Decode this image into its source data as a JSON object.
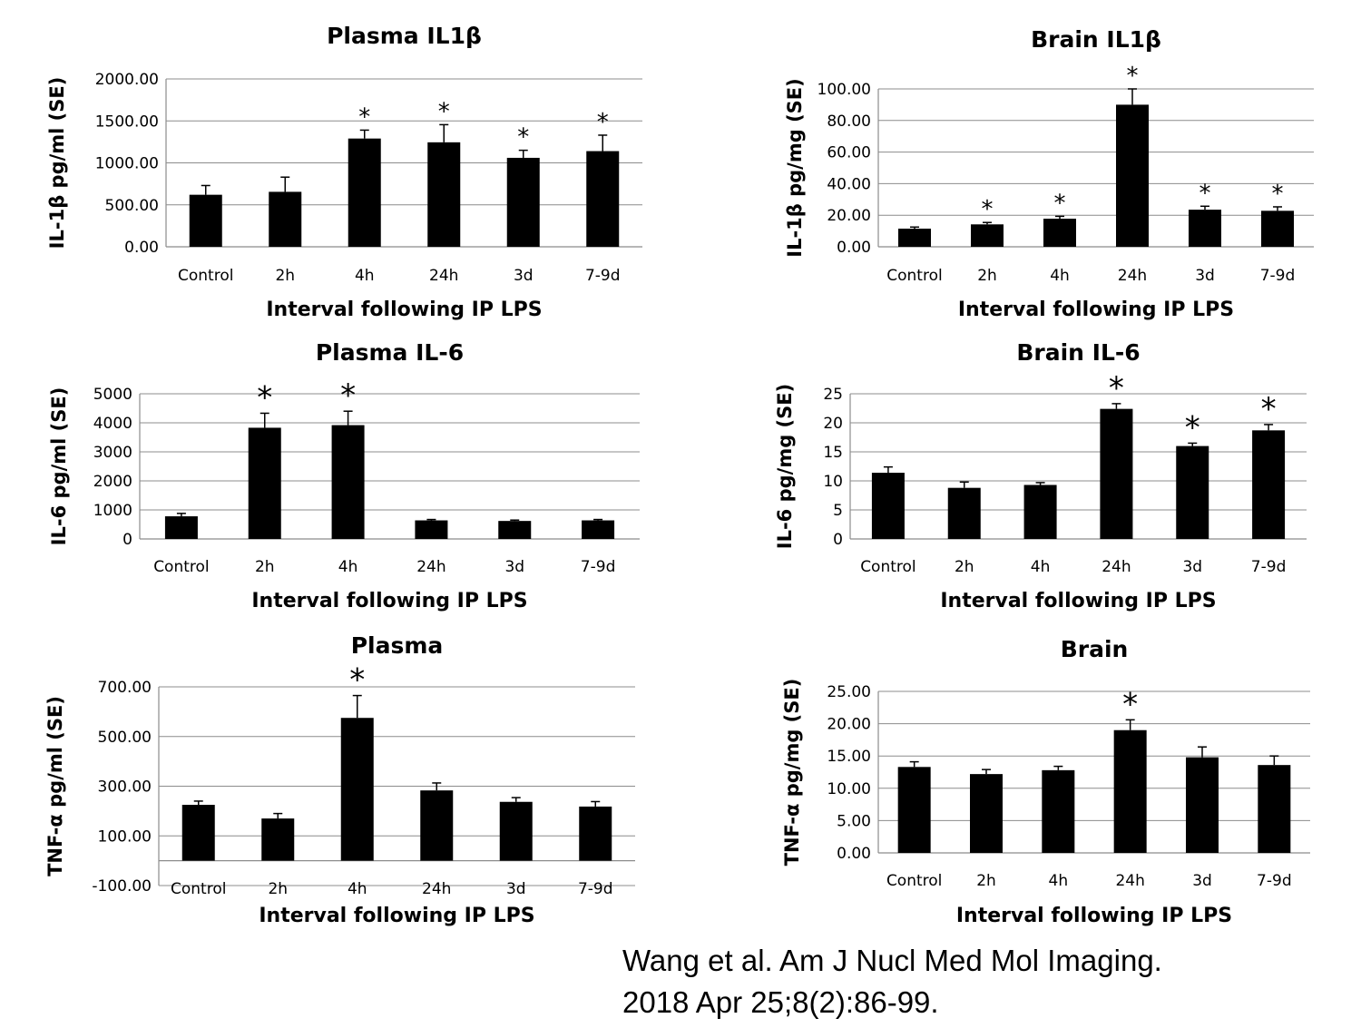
{
  "chart_data": [
    {
      "type": "bar",
      "title": "Plasma IL1β",
      "ylabel": "IL-1β pg/ml (SE)",
      "xlabel": "Interval following IP LPS",
      "categories": [
        "Control",
        "2h",
        "4h",
        "24h",
        "3d",
        "7-9d"
      ],
      "values": [
        620,
        655,
        1290,
        1245,
        1060,
        1140
      ],
      "errors": [
        110,
        175,
        100,
        210,
        90,
        190
      ],
      "significant": [
        false,
        false,
        true,
        true,
        true,
        true
      ],
      "ylim": [
        0,
        2000
      ],
      "yticks": [
        "0.00",
        "500.00",
        "1000.00",
        "1500.00",
        "2000.00"
      ],
      "grid": true,
      "legend": "none"
    },
    {
      "type": "bar",
      "title": "Brain IL1β",
      "ylabel": "IL-1β pg/mg (SE)",
      "xlabel": "Interval following IP LPS",
      "categories": [
        "Control",
        "2h",
        "4h",
        "24h",
        "3d",
        "7-9d"
      ],
      "values": [
        11.5,
        14.2,
        17.8,
        90,
        23.5,
        22.8
      ],
      "errors": [
        1.0,
        1.2,
        1.5,
        10,
        2.2,
        2.5
      ],
      "significant": [
        false,
        true,
        true,
        true,
        true,
        true
      ],
      "ylim": [
        0,
        100
      ],
      "yticks": [
        "0.00",
        "20.00",
        "40.00",
        "60.00",
        "80.00",
        "100.00"
      ],
      "grid": true,
      "legend": "none"
    },
    {
      "type": "bar",
      "title": "Plasma IL-6",
      "ylabel": "IL-6 pg/ml (SE)",
      "xlabel": "Interval following IP LPS",
      "categories": [
        "Control",
        "2h",
        "4h",
        "24h",
        "3d",
        "7-9d"
      ],
      "values": [
        780,
        3830,
        3920,
        640,
        620,
        640
      ],
      "errors": [
        100,
        500,
        480,
        30,
        30,
        30
      ],
      "significant": [
        false,
        true,
        true,
        false,
        false,
        false
      ],
      "ylim": [
        0,
        5000
      ],
      "yticks": [
        "0",
        "1000",
        "2000",
        "3000",
        "4000",
        "5000"
      ],
      "grid": true,
      "legend": "none"
    },
    {
      "type": "bar",
      "title": "Brain IL-6",
      "ylabel": "IL-6 pg/mg (SE)",
      "xlabel": "Interval following IP LPS",
      "categories": [
        "Control",
        "2h",
        "4h",
        "24h",
        "3d",
        "7-9d"
      ],
      "values": [
        11.4,
        8.8,
        9.3,
        22.4,
        16.0,
        18.7
      ],
      "errors": [
        1.0,
        1.0,
        0.4,
        0.9,
        0.5,
        1.0
      ],
      "significant": [
        false,
        false,
        false,
        true,
        true,
        true
      ],
      "ylim": [
        0,
        25
      ],
      "yticks": [
        "0",
        "5",
        "10",
        "15",
        "20",
        "25"
      ],
      "grid": true,
      "legend": "none"
    },
    {
      "type": "bar",
      "title": "Plasma",
      "ylabel": "TNF-α pg/ml (SE)",
      "xlabel": "Interval following IP LPS",
      "categories": [
        "Control",
        "2h",
        "4h",
        "24h",
        "3d",
        "7-9d"
      ],
      "values": [
        225,
        170,
        575,
        283,
        237,
        218
      ],
      "errors": [
        15,
        20,
        90,
        30,
        17,
        20
      ],
      "significant": [
        false,
        false,
        true,
        false,
        false,
        false
      ],
      "ylim": [
        -100,
        700
      ],
      "yticks": [
        "-100.00",
        "100.00",
        "300.00",
        "500.00",
        "700.00"
      ],
      "grid": true,
      "legend": "none"
    },
    {
      "type": "bar",
      "title": "Brain",
      "ylabel": "TNF-α pg/mg (SE)",
      "xlabel": "Interval following IP LPS",
      "categories": [
        "Control",
        "2h",
        "4h",
        "24h",
        "3d",
        "7-9d"
      ],
      "values": [
        13.3,
        12.2,
        12.8,
        19.0,
        14.8,
        13.6
      ],
      "errors": [
        0.8,
        0.7,
        0.6,
        1.6,
        1.6,
        1.4
      ],
      "significant": [
        false,
        false,
        false,
        true,
        false,
        false
      ],
      "ylim": [
        0,
        25
      ],
      "yticks": [
        "0.00",
        "5.00",
        "10.00",
        "15.00",
        "20.00",
        "25.00"
      ],
      "grid": true,
      "legend": "none"
    }
  ],
  "significance_marker": "*",
  "citation": {
    "line1": "Wang et al. Am J Nucl Med Mol Imaging.",
    "line2": "2018 Apr 25;8(2):86-99."
  }
}
